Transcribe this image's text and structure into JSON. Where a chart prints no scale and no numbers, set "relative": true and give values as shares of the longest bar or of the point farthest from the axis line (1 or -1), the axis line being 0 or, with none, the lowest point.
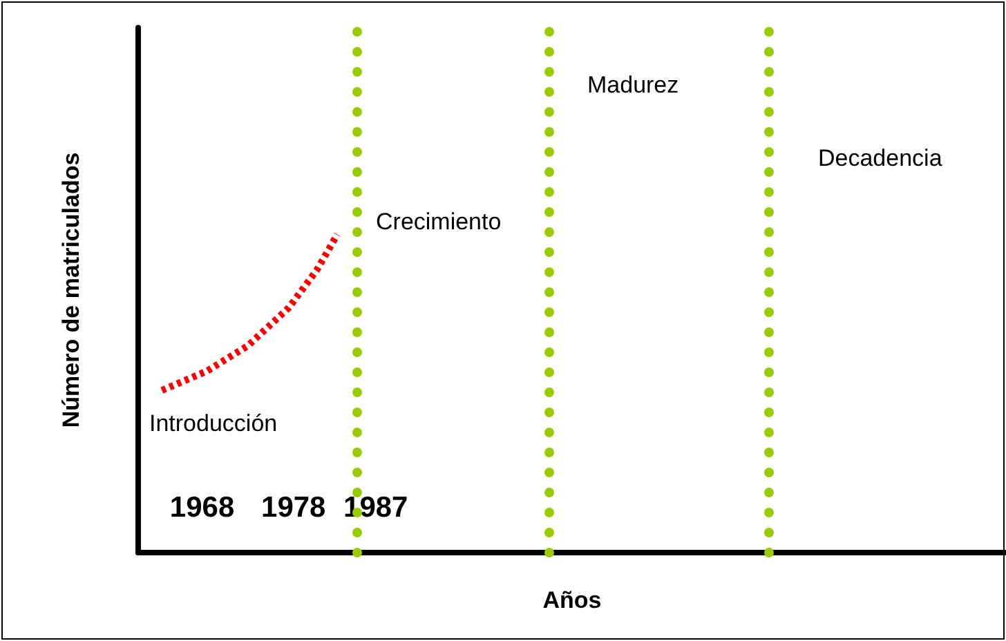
{
  "chart_data": {
    "type": "line",
    "relative": true,
    "xlabel": "Años",
    "ylabel": "Número de matriculados",
    "x": [
      1963.6,
      1968.5,
      1973,
      1977.5,
      1980.6,
      1982.8
    ],
    "series": [
      {
        "color": "#ff0000",
        "values": [
          0.51,
          0.57,
          0.65,
          0.77,
          0.89,
          1
        ],
        "line_style": "dotted"
      }
    ],
    "xlim": [
      1961,
      2056
    ],
    "xticks": [
      1968,
      1978,
      1987
    ],
    "tick_labels": "x",
    "grid": false,
    "marker": "none",
    "ref_lines": [
      {
        "axis": "x",
        "value": 1985,
        "color": "#99cc00",
        "line_style": "dotted"
      },
      {
        "axis": "x",
        "value": 2006,
        "color": "#99cc00",
        "line_style": "dotted"
      },
      {
        "axis": "x",
        "value": 2030,
        "color": "#99cc00",
        "line_style": "dotted"
      }
    ],
    "annotations": [
      "Introducción",
      "Crecimiento",
      "Madurez",
      "Decadencia"
    ]
  }
}
